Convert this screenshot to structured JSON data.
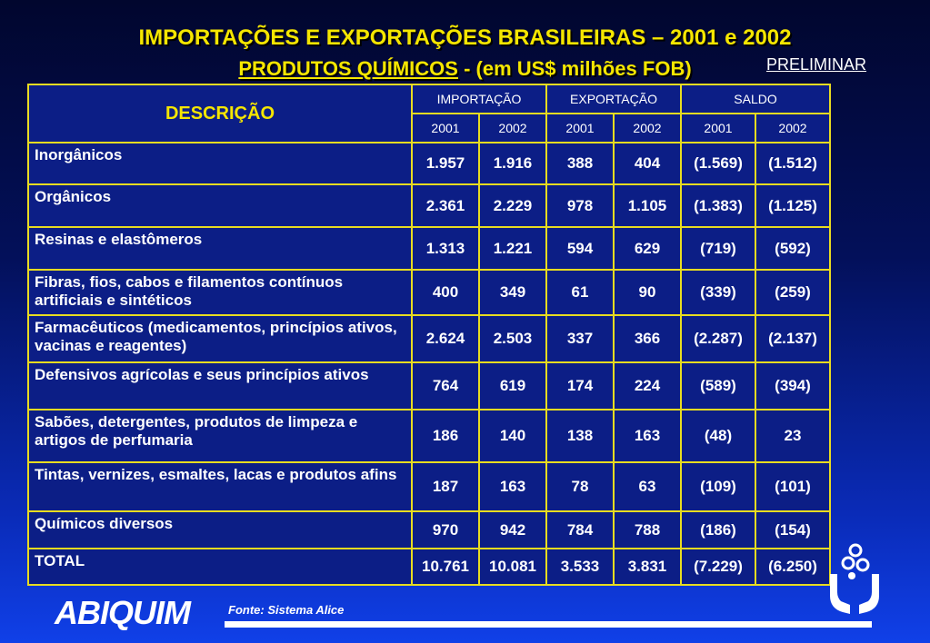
{
  "title_line1": "IMPORTAÇÕES E EXPORTAÇÕES BRASILEIRAS – 2001 e 2002",
  "title_line2_underlined": "PRODUTOS QUÍMICOS",
  "title_line2_rest": " - (em US$ milhões FOB)",
  "preliminar": "PRELIMINAR",
  "table": {
    "desc_header": "DESCRIÇÃO",
    "groups": [
      "IMPORTAÇÃO",
      "EXPORTAÇÃO",
      "SALDO"
    ],
    "years": [
      "2001",
      "2002",
      "2001",
      "2002",
      "2001",
      "2002"
    ],
    "rows": [
      {
        "label": "Inorgânicos",
        "values": [
          "1.957",
          "1.916",
          "388",
          "404",
          "(1.569)",
          "(1.512)"
        ]
      },
      {
        "label": "Orgânicos",
        "values": [
          "2.361",
          "2.229",
          "978",
          "1.105",
          "(1.383)",
          "(1.125)"
        ]
      },
      {
        "label": "Resinas e elastômeros",
        "values": [
          "1.313",
          "1.221",
          "594",
          "629",
          "(719)",
          "(592)"
        ]
      },
      {
        "label": "Fibras, fios, cabos e filamentos contínuos artificiais e sintéticos",
        "values": [
          "400",
          "349",
          "61",
          "90",
          "(339)",
          "(259)"
        ]
      },
      {
        "label": "Farmacêuticos (medicamentos, princípios ativos, vacinas e reagentes)",
        "values": [
          "2.624",
          "2.503",
          "337",
          "366",
          "(2.287)",
          "(2.137)"
        ]
      },
      {
        "label": "Defensivos agrícolas  e seus princípios ativos",
        "values": [
          "764",
          "619",
          "174",
          "224",
          "(589)",
          "(394)"
        ]
      },
      {
        "label": "Sabões, detergentes, produtos de limpeza e artigos de perfumaria",
        "values": [
          "186",
          "140",
          "138",
          "163",
          "(48)",
          "23"
        ]
      },
      {
        "label": "Tintas, vernizes, esmaltes, lacas e produtos afins",
        "values": [
          "187",
          "163",
          "78",
          "63",
          "(109)",
          "(101)"
        ]
      },
      {
        "label": "Químicos diversos",
        "values": [
          "970",
          "942",
          "784",
          "788",
          "(186)",
          "(154)"
        ]
      },
      {
        "label": "TOTAL",
        "values": [
          "10.761",
          "10.081",
          "3.533",
          "3.831",
          "(7.229)",
          "(6.250)"
        ]
      }
    ]
  },
  "logo_text": "ABIQUIM",
  "fonte": "Fonte: Sistema Alice",
  "hands_icon": "hands-molecule-icon"
}
